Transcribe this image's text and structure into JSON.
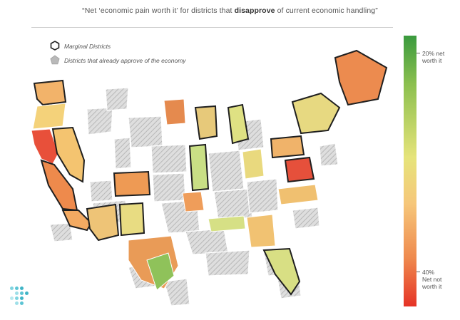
{
  "title": {
    "prefix": "“Net ‘economic pain worth it’ for districts that ",
    "emphasis": "disapprove",
    "suffix": " of current economic handling”"
  },
  "legend": {
    "marginal": "Marginal Districts",
    "approve": "Districts that already approve of the economy"
  },
  "colorbar": {
    "top_label_line1": "20% net",
    "top_label_line2": "worth it",
    "bottom_label_line1": "40%",
    "bottom_label_line2": "Net not",
    "bottom_label_line3": "worth it",
    "top_value": 20,
    "bottom_value": -40,
    "top_color": "#3a9a3e",
    "bottom_color": "#e53326"
  },
  "colors": {
    "approve_hatch": "#c8c8c8",
    "marginal_outline": "#1f1f1f"
  },
  "regions": [
    {
      "id": "WA",
      "fill": "#f2b36a",
      "marginal": true
    },
    {
      "id": "OR",
      "fill": "#f4d27a",
      "marginal": false
    },
    {
      "id": "CA-N",
      "fill": "#e8503a",
      "marginal": false
    },
    {
      "id": "CA-C",
      "fill": "#ee8a4c",
      "marginal": true
    },
    {
      "id": "CA-S",
      "fill": "#f3aa62",
      "marginal": true
    },
    {
      "id": "NV",
      "fill": "#f4c470",
      "marginal": true
    },
    {
      "id": "AZ",
      "fill": "#eec477",
      "marginal": true
    },
    {
      "id": "NM",
      "fill": "#e8dc82",
      "marginal": true
    },
    {
      "id": "CO",
      "fill": "#ee9a54",
      "marginal": true
    },
    {
      "id": "MN",
      "fill": "#e58a4e",
      "marginal": false
    },
    {
      "id": "IL",
      "fill": "#c9df85",
      "marginal": true
    },
    {
      "id": "MI",
      "fill": "#dfe183",
      "marginal": true
    },
    {
      "id": "PA",
      "fill": "#f0b36a",
      "marginal": true
    },
    {
      "id": "NY",
      "fill": "#e7d981",
      "marginal": true
    },
    {
      "id": "NE-US",
      "fill": "#ec8b4f",
      "marginal": true
    },
    {
      "id": "VA",
      "fill": "#e6503b",
      "marginal": true
    },
    {
      "id": "NC",
      "fill": "#f0c070",
      "marginal": false
    },
    {
      "id": "GA",
      "fill": "#f1c272",
      "marginal": false
    },
    {
      "id": "FL",
      "fill": "#d8df84",
      "marginal": true
    },
    {
      "id": "TX",
      "fill": "#e99b57",
      "marginal": false
    },
    {
      "id": "TX-S",
      "fill": "#8fc25a",
      "marginal": false
    },
    {
      "id": "MO",
      "fill": "#ef9d5a",
      "marginal": false
    },
    {
      "id": "OH",
      "fill": "#e9d97e",
      "marginal": false
    },
    {
      "id": "WI",
      "fill": "#e7c97a",
      "marginal": true
    },
    {
      "id": "TN",
      "fill": "#d6e085",
      "marginal": false
    }
  ]
}
